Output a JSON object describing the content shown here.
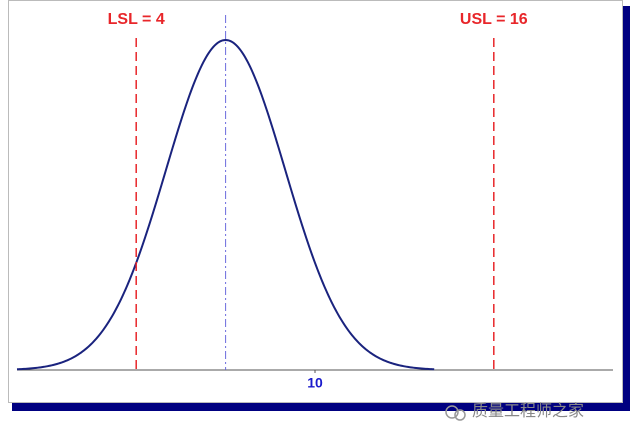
{
  "chart_data": {
    "type": "normal",
    "mean": 7,
    "std": 2,
    "xlim": [
      0,
      20
    ],
    "xticks": [
      10
    ],
    "curve_color": "#1a237e",
    "mean_color": "#6b6bdc",
    "limit_color": "#e8262a",
    "limits": [
      {
        "label": "LSL = 4",
        "value": 4
      },
      {
        "label": "USL = 16",
        "value": 16
      }
    ],
    "watermark": "质量工程师之家"
  }
}
